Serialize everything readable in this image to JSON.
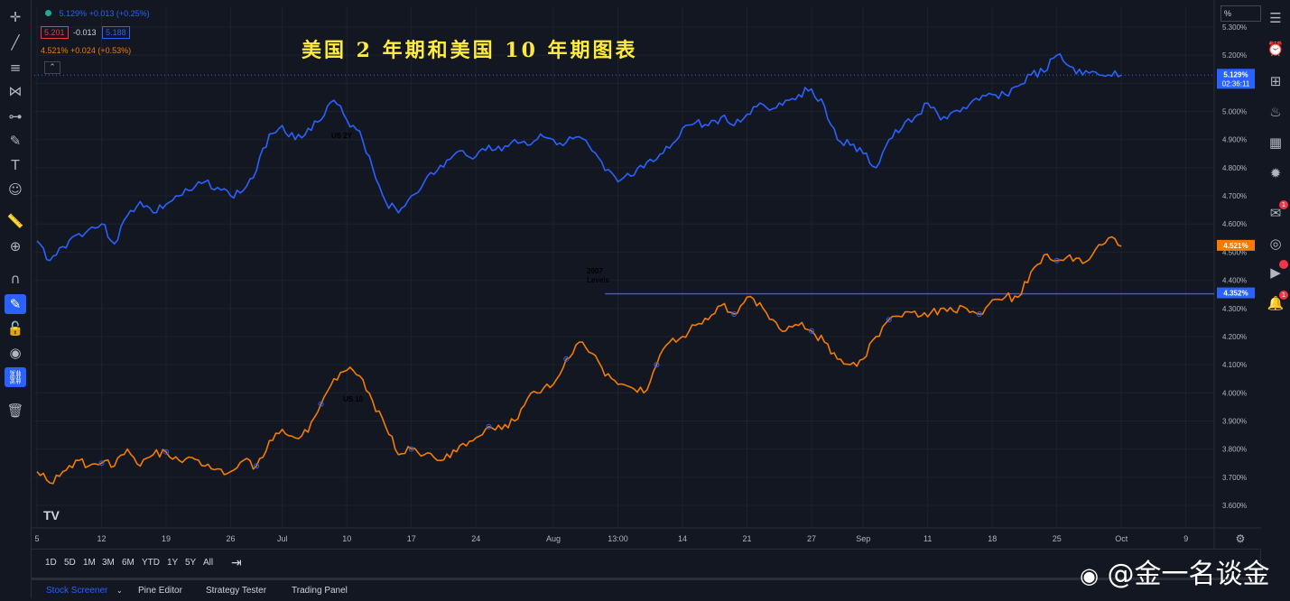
{
  "title": "美国 2 年期和美国 10 年期图表",
  "legend": {
    "us2": {
      "price": "5.129%",
      "change": "+0.013 (+0.25%)",
      "bid": "5.201",
      "spread": "-0.013",
      "ask": "5.188"
    },
    "us10": {
      "price": "4.521%",
      "change": "+0.024 (+0.53%)"
    }
  },
  "price_scale_unit": "%",
  "last_labels": {
    "us2_price": "5.129%",
    "us2_countdown": "02:36:11",
    "us10_price": "4.521%",
    "level_price": "4.352%"
  },
  "annotation": {
    "line1": "2007",
    "line2": "Levels"
  },
  "series_labels": {
    "us2": "US 2Y",
    "us10": "US 10"
  },
  "range_buttons": [
    "1D",
    "5D",
    "1M",
    "3M",
    "6M",
    "YTD",
    "1Y",
    "5Y",
    "All"
  ],
  "bottom_tabs": [
    "Stock Screener",
    "Pine Editor",
    "Strategy Tester",
    "Trading Panel"
  ],
  "watermark": "@金一名谈金",
  "logo": "TV",
  "colors": {
    "us2": "#2962ff",
    "us10": "#f57c00",
    "level": "#2962ff",
    "background": "#131722",
    "title": "#ffeb3b"
  },
  "chart_data": {
    "type": "line",
    "y_scale_unit": "%",
    "ylim": [
      3.55,
      5.32
    ],
    "yticks": [
      3.6,
      3.7,
      3.8,
      3.9,
      4.0,
      4.1,
      4.2,
      4.3,
      4.4,
      4.5,
      4.6,
      4.7,
      4.8,
      4.9,
      5.0,
      5.1,
      5.2,
      5.3
    ],
    "ytick_labels": [
      "3.600%",
      "3.700%",
      "3.800%",
      "3.900%",
      "4.000%",
      "4.100%",
      "4.200%",
      "4.300%",
      "4.400%",
      "4.500%",
      "4.600%",
      "4.700%",
      "4.800%",
      "4.900%",
      "5.000%",
      "5.100%",
      "5.200%",
      "5.300%"
    ],
    "xlim": [
      0,
      115
    ],
    "xticks": [
      {
        "x": 0,
        "label": "5"
      },
      {
        "x": 5,
        "label": "12"
      },
      {
        "x": 10,
        "label": "19"
      },
      {
        "x": 15,
        "label": "26"
      },
      {
        "x": 19,
        "label": "Jul"
      },
      {
        "x": 24,
        "label": "10"
      },
      {
        "x": 29,
        "label": "17"
      },
      {
        "x": 34,
        "label": "24"
      },
      {
        "x": 40,
        "label": "Aug"
      },
      {
        "x": 45,
        "label": "13:00"
      },
      {
        "x": 50,
        "label": "14"
      },
      {
        "x": 55,
        "label": "21"
      },
      {
        "x": 60,
        "label": "27"
      },
      {
        "x": 64,
        "label": "Sep"
      },
      {
        "x": 69,
        "label": "11"
      },
      {
        "x": 74,
        "label": "18"
      },
      {
        "x": 79,
        "label": "25"
      },
      {
        "x": 84,
        "label": "Oct"
      },
      {
        "x": 89,
        "label": "9"
      }
    ],
    "grid": true,
    "series": [
      {
        "name": "US 2Y",
        "values": [
          [
            0,
            4.54
          ],
          [
            1,
            4.47
          ],
          [
            2,
            4.52
          ],
          [
            3,
            4.56
          ],
          [
            4,
            4.58
          ],
          [
            5,
            4.6
          ],
          [
            6,
            4.53
          ],
          [
            7,
            4.63
          ],
          [
            8,
            4.68
          ],
          [
            9,
            4.64
          ],
          [
            10,
            4.67
          ],
          [
            11,
            4.7
          ],
          [
            12,
            4.72
          ],
          [
            13,
            4.75
          ],
          [
            14,
            4.73
          ],
          [
            15,
            4.7
          ],
          [
            16,
            4.72
          ],
          [
            17,
            4.79
          ],
          [
            18,
            4.92
          ],
          [
            19,
            4.95
          ],
          [
            20,
            4.9
          ],
          [
            21,
            4.94
          ],
          [
            22,
            4.97
          ],
          [
            23,
            5.04
          ],
          [
            24,
            4.97
          ],
          [
            25,
            4.93
          ],
          [
            26,
            4.8
          ],
          [
            27,
            4.68
          ],
          [
            28,
            4.64
          ],
          [
            29,
            4.7
          ],
          [
            30,
            4.75
          ],
          [
            31,
            4.79
          ],
          [
            32,
            4.83
          ],
          [
            33,
            4.86
          ],
          [
            34,
            4.84
          ],
          [
            35,
            4.88
          ],
          [
            36,
            4.86
          ],
          [
            37,
            4.9
          ],
          [
            38,
            4.88
          ],
          [
            39,
            4.92
          ],
          [
            40,
            4.9
          ],
          [
            41,
            4.89
          ],
          [
            42,
            4.91
          ],
          [
            43,
            4.86
          ],
          [
            44,
            4.79
          ],
          [
            45,
            4.75
          ],
          [
            46,
            4.77
          ],
          [
            47,
            4.8
          ],
          [
            48,
            4.83
          ],
          [
            49,
            4.87
          ],
          [
            50,
            4.94
          ],
          [
            51,
            4.96
          ],
          [
            52,
            4.95
          ],
          [
            53,
            4.98
          ],
          [
            54,
            4.95
          ],
          [
            55,
            4.99
          ],
          [
            56,
            5.03
          ],
          [
            57,
            5.01
          ],
          [
            58,
            5.04
          ],
          [
            59,
            5.06
          ],
          [
            60,
            5.08
          ],
          [
            61,
            5.02
          ],
          [
            62,
            4.9
          ],
          [
            63,
            4.88
          ],
          [
            64,
            4.85
          ],
          [
            65,
            4.8
          ],
          [
            66,
            4.9
          ],
          [
            67,
            4.94
          ],
          [
            68,
            4.98
          ],
          [
            69,
            5.03
          ],
          [
            70,
            4.97
          ],
          [
            71,
            5.0
          ],
          [
            72,
            5.01
          ],
          [
            73,
            5.04
          ],
          [
            74,
            5.06
          ],
          [
            75,
            5.06
          ],
          [
            76,
            5.09
          ],
          [
            77,
            5.13
          ],
          [
            78,
            5.14
          ],
          [
            79,
            5.2
          ],
          [
            80,
            5.16
          ],
          [
            81,
            5.13
          ],
          [
            82,
            5.14
          ],
          [
            83,
            5.13
          ],
          [
            84,
            5.129
          ]
        ]
      },
      {
        "name": "US 10",
        "values": [
          [
            0,
            3.72
          ],
          [
            1,
            3.68
          ],
          [
            2,
            3.72
          ],
          [
            3,
            3.76
          ],
          [
            4,
            3.74
          ],
          [
            5,
            3.75
          ],
          [
            6,
            3.74
          ],
          [
            7,
            3.8
          ],
          [
            8,
            3.74
          ],
          [
            9,
            3.78
          ],
          [
            10,
            3.79
          ],
          [
            11,
            3.76
          ],
          [
            12,
            3.77
          ],
          [
            13,
            3.74
          ],
          [
            14,
            3.73
          ],
          [
            15,
            3.72
          ],
          [
            16,
            3.76
          ],
          [
            17,
            3.74
          ],
          [
            18,
            3.83
          ],
          [
            19,
            3.87
          ],
          [
            20,
            3.84
          ],
          [
            21,
            3.86
          ],
          [
            22,
            3.96
          ],
          [
            23,
            4.05
          ],
          [
            24,
            4.08
          ],
          [
            25,
            4.06
          ],
          [
            26,
            3.97
          ],
          [
            27,
            3.88
          ],
          [
            28,
            3.78
          ],
          [
            29,
            3.8
          ],
          [
            30,
            3.78
          ],
          [
            31,
            3.76
          ],
          [
            32,
            3.77
          ],
          [
            33,
            3.82
          ],
          [
            34,
            3.84
          ],
          [
            35,
            3.88
          ],
          [
            36,
            3.87
          ],
          [
            37,
            3.9
          ],
          [
            38,
            3.98
          ],
          [
            39,
            4.0
          ],
          [
            40,
            4.03
          ],
          [
            41,
            4.12
          ],
          [
            42,
            4.18
          ],
          [
            43,
            4.14
          ],
          [
            44,
            4.06
          ],
          [
            45,
            4.03
          ],
          [
            46,
            4.02
          ],
          [
            47,
            4.0
          ],
          [
            48,
            4.1
          ],
          [
            49,
            4.18
          ],
          [
            50,
            4.2
          ],
          [
            51,
            4.24
          ],
          [
            52,
            4.26
          ],
          [
            53,
            4.31
          ],
          [
            54,
            4.28
          ],
          [
            55,
            4.34
          ],
          [
            56,
            4.32
          ],
          [
            57,
            4.26
          ],
          [
            58,
            4.22
          ],
          [
            59,
            4.24
          ],
          [
            60,
            4.22
          ],
          [
            61,
            4.18
          ],
          [
            62,
            4.12
          ],
          [
            63,
            4.1
          ],
          [
            64,
            4.12
          ],
          [
            65,
            4.2
          ],
          [
            66,
            4.26
          ],
          [
            67,
            4.27
          ],
          [
            68,
            4.29
          ],
          [
            69,
            4.27
          ],
          [
            70,
            4.3
          ],
          [
            71,
            4.29
          ],
          [
            72,
            4.3
          ],
          [
            73,
            4.28
          ],
          [
            74,
            4.33
          ],
          [
            75,
            4.34
          ],
          [
            76,
            4.34
          ],
          [
            77,
            4.43
          ],
          [
            78,
            4.49
          ],
          [
            79,
            4.47
          ],
          [
            80,
            4.49
          ],
          [
            81,
            4.46
          ],
          [
            82,
            4.51
          ],
          [
            83,
            4.55
          ],
          [
            84,
            4.521
          ]
        ]
      }
    ],
    "horizontal_lines": [
      {
        "y": 4.352,
        "x_start": 44
      }
    ]
  }
}
